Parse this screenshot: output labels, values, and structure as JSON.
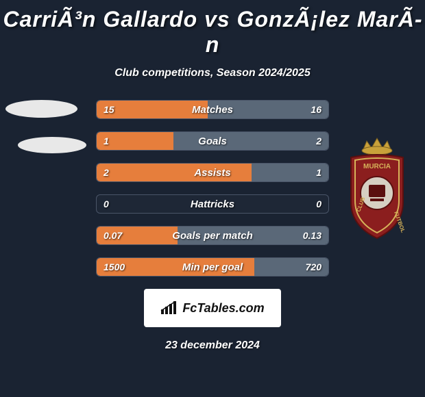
{
  "title": "CarriÃ³n Gallardo vs GonzÃ¡lez MarÃ­n",
  "subtitle": "Club competitions, Season 2024/2025",
  "date": "23 december 2024",
  "logo_text": "FcTables.com",
  "colors": {
    "bg": "#1a2332",
    "bar_left": "#e67e3c",
    "bar_right": "#5a6878",
    "border": "#4a5568",
    "logo_bg": "#ffffff",
    "logo_text": "#111111",
    "badge_red": "#8b1e1e",
    "badge_crown": "#c9a13a",
    "ellipse": "#e8e8e8"
  },
  "bars": [
    {
      "label": "Matches",
      "left": "15",
      "right": "16",
      "left_pct": 48,
      "right_pct": 52
    },
    {
      "label": "Goals",
      "left": "1",
      "right": "2",
      "left_pct": 33,
      "right_pct": 67
    },
    {
      "label": "Assists",
      "left": "2",
      "right": "1",
      "left_pct": 67,
      "right_pct": 33
    },
    {
      "label": "Hattricks",
      "left": "0",
      "right": "0",
      "left_pct": 0,
      "right_pct": 0
    },
    {
      "label": "Goals per match",
      "left": "0.07",
      "right": "0.13",
      "left_pct": 35,
      "right_pct": 65
    },
    {
      "label": "Min per goal",
      "left": "1500",
      "right": "720",
      "left_pct": 68,
      "right_pct": 32
    }
  ]
}
